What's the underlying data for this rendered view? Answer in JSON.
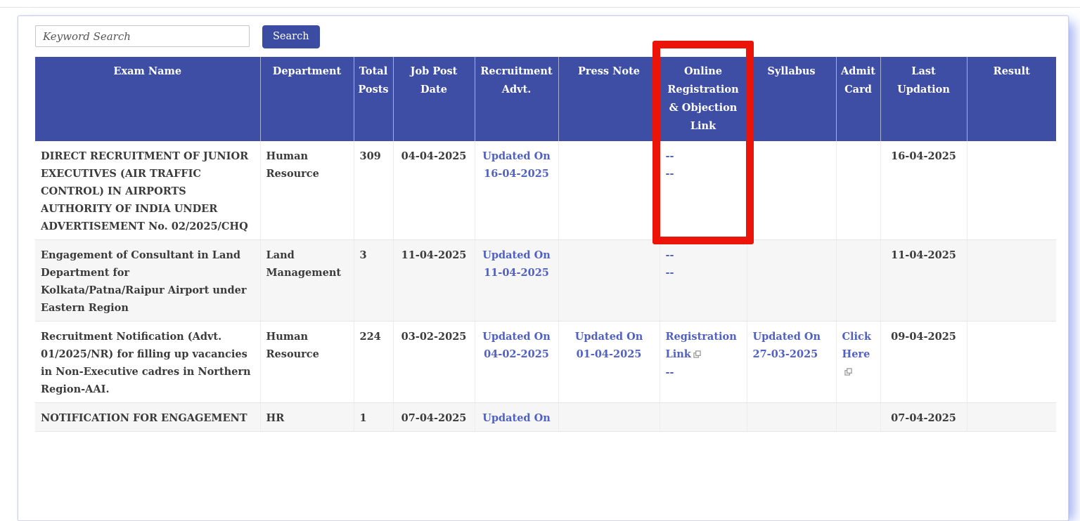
{
  "search": {
    "placeholder": "Keyword Search",
    "button_label": "Search"
  },
  "highlight": {
    "color": "#ec1408",
    "target_column": "Online Registration & Objection Link"
  },
  "colors": {
    "header_bg": "#3e4ea4",
    "link": "#5161c1",
    "button_bg": "#3c4ca2",
    "alt_row_bg": "#f6f6f6"
  },
  "table": {
    "columns": [
      {
        "key": "exam_name",
        "label": "Exam Name",
        "align": "left"
      },
      {
        "key": "department",
        "label": "Department",
        "align": "left"
      },
      {
        "key": "total_posts",
        "label": "Total Posts",
        "align": "left"
      },
      {
        "key": "job_post_date",
        "label": "Job Post Date",
        "align": "center"
      },
      {
        "key": "recruitment_advt",
        "label": "Recruitment Advt.",
        "align": "center"
      },
      {
        "key": "press_note",
        "label": "Press Note",
        "align": "center"
      },
      {
        "key": "online_reg",
        "label": "Online Registration & Objection Link",
        "align": "left"
      },
      {
        "key": "syllabus",
        "label": "Syllabus",
        "align": "left"
      },
      {
        "key": "admit_card",
        "label": "Admit Card",
        "align": "left"
      },
      {
        "key": "last_updation",
        "label": "Last Updation",
        "align": "center"
      },
      {
        "key": "result",
        "label": "Result",
        "align": "center"
      }
    ],
    "rows": [
      {
        "exam_name": "DIRECT RECRUITMENT OF JUNIOR EXECUTIVES (AIR TRAFFIC CONTROL) IN AIRPORTS AUTHORITY OF INDIA UNDER ADVERTISEMENT No. 02/2025/CHQ",
        "department": "Human Resource",
        "total_posts": "309",
        "job_post_date": "04-04-2025",
        "recruitment_advt": {
          "links": [
            {
              "text": "Updated On 16-04-2025"
            }
          ]
        },
        "press_note": "",
        "online_reg": {
          "links": [
            {
              "text": "--"
            },
            {
              "text": "--"
            }
          ]
        },
        "syllabus": "",
        "admit_card": "",
        "last_updation": "16-04-2025",
        "result": ""
      },
      {
        "exam_name": "Engagement of Consultant in Land Department for Kolkata/Patna/Raipur Airport under Eastern Region",
        "department": "Land Management",
        "total_posts": "3",
        "job_post_date": "11-04-2025",
        "recruitment_advt": {
          "links": [
            {
              "text": "Updated On 11-04-2025"
            }
          ]
        },
        "press_note": "",
        "online_reg": {
          "links": [
            {
              "text": "--"
            },
            {
              "text": "--"
            }
          ]
        },
        "syllabus": "",
        "admit_card": "",
        "last_updation": "11-04-2025",
        "result": ""
      },
      {
        "exam_name": "Recruitment Notification (Advt. 01/2025/NR) for filling up vacancies in Non-Executive cadres in Northern Region-AAI.",
        "department": "Human Resource",
        "total_posts": "224",
        "job_post_date": "03-02-2025",
        "recruitment_advt": {
          "links": [
            {
              "text": "Updated On 04-02-2025"
            }
          ]
        },
        "press_note": {
          "links": [
            {
              "text": "Updated On 01-04-2025"
            }
          ]
        },
        "online_reg": {
          "links": [
            {
              "text": "Registration Link",
              "ext": true
            },
            {
              "text": "--"
            }
          ]
        },
        "syllabus": {
          "links": [
            {
              "text": "Updated On 27-03-2025"
            }
          ]
        },
        "admit_card": {
          "links": [
            {
              "text": "Click Here",
              "ext": true
            }
          ]
        },
        "last_updation": "09-04-2025",
        "result": ""
      },
      {
        "exam_name": "NOTIFICATION FOR ENGAGEMENT",
        "department": "HR",
        "total_posts": "1",
        "job_post_date": "07-04-2025",
        "recruitment_advt": {
          "links": [
            {
              "text": "Updated On"
            }
          ]
        },
        "press_note": "",
        "online_reg": "",
        "syllabus": "",
        "admit_card": "",
        "last_updation": "07-04-2025",
        "result": ""
      }
    ]
  }
}
